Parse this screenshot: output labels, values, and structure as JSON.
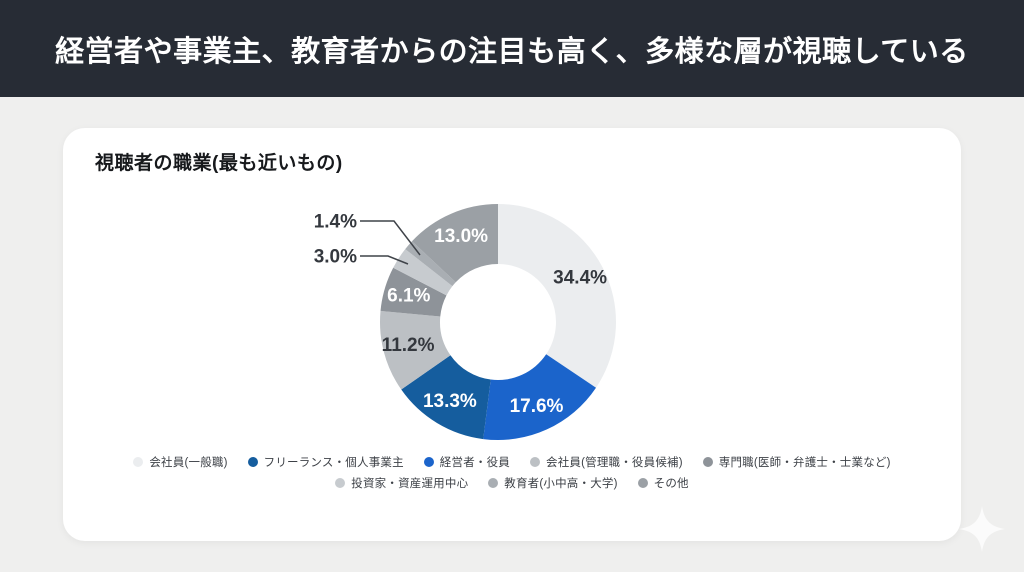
{
  "header": {
    "title": "経営者や事業主、教育者からの注目も高く、多様な層が視聴している"
  },
  "card": {
    "title": "視聴者の職業(最も近いもの)"
  },
  "chart_data": {
    "type": "pie",
    "subtype": "donut",
    "title": "視聴者の職業(最も近いもの)",
    "unit": "%",
    "start_angle_deg": 0,
    "direction": "clockwise",
    "total": 100.0,
    "slices": [
      {
        "label": "会社員(一般職)",
        "value": 34.4,
        "display": "34.4%",
        "color": "#ebedef",
        "label_color": "#34383e",
        "label_placement": "inside"
      },
      {
        "label": "経営者・役員",
        "value": 17.6,
        "display": "17.6%",
        "color": "#1b64cb",
        "label_color": "#ffffff",
        "label_placement": "inside"
      },
      {
        "label": "フリーランス・個人事業主",
        "value": 13.3,
        "display": "13.3%",
        "color": "#155d9e",
        "label_color": "#ffffff",
        "label_placement": "inside"
      },
      {
        "label": "会社員(管理職・役員候補)",
        "value": 11.2,
        "display": "11.2%",
        "color": "#bcc0c4",
        "label_color": "#34383e",
        "label_placement": "inside"
      },
      {
        "label": "専門職(医師・弁護士・士業など)",
        "value": 6.1,
        "display": "6.1%",
        "color": "#8e9399",
        "label_color": "#ffffff",
        "label_placement": "inside"
      },
      {
        "label": "投資家・資産運用中心",
        "value": 3.0,
        "display": "3.0%",
        "color": "#c7cbcf",
        "label_color": "#34383e",
        "label_placement": "outside"
      },
      {
        "label": "教育者(小中高・大学)",
        "value": 1.4,
        "display": "1.4%",
        "color": "#a9aeb3",
        "label_color": "#34383e",
        "label_placement": "outside"
      },
      {
        "label": "その他",
        "value": 13.0,
        "display": "13.0%",
        "color": "#9ba0a5",
        "label_color": "#ffffff",
        "label_placement": "inside"
      }
    ],
    "legend_rows": [
      [
        0,
        2,
        1,
        3,
        4
      ],
      [
        5,
        6,
        7
      ]
    ],
    "legend_position": "bottom"
  },
  "colors": {
    "header_bg": "#272c35",
    "page_bg": "#efefee",
    "card_bg": "#ffffff",
    "accent_blue_bright": "#1b64cb",
    "accent_blue_dark": "#155d9e"
  },
  "icons": {
    "sparkle-icon": "✦ four-pointed star"
  }
}
